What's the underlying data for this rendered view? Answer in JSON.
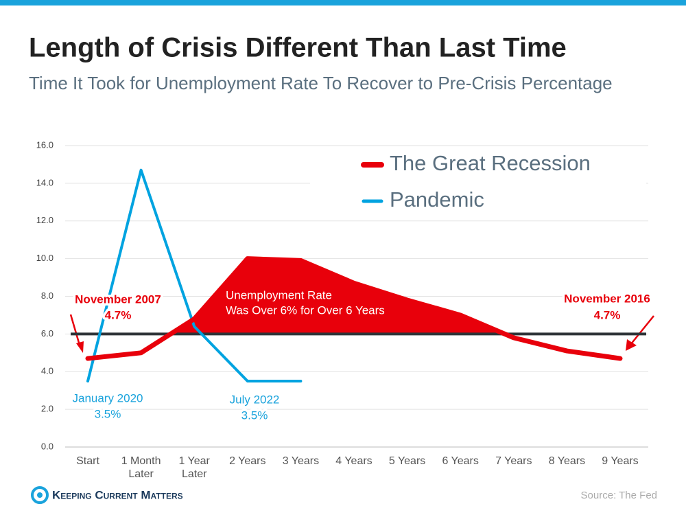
{
  "chart_data": {
    "type": "line",
    "title": "Length of Crisis Different Than Last Time",
    "subtitle": "Time It Took for Unemployment Rate To Recover to Pre-Crisis Percentage",
    "categories": [
      [
        "Start"
      ],
      [
        "1 Month",
        "Later"
      ],
      [
        "1 Year",
        "Later"
      ],
      [
        "2 Years"
      ],
      [
        "3 Years"
      ],
      [
        "4 Years"
      ],
      [
        "5 Years"
      ],
      [
        "6 Years"
      ],
      [
        "7 Years"
      ],
      [
        "8 Years"
      ],
      [
        "9 Years"
      ]
    ],
    "series": [
      {
        "name": "The Great Recession",
        "color": "#e8000b",
        "values": [
          4.7,
          5.0,
          6.8,
          10.0,
          9.9,
          8.7,
          7.8,
          7.0,
          5.8,
          5.1,
          4.7
        ]
      },
      {
        "name": "Pandemic",
        "color": "#00a3e0",
        "values": [
          3.5,
          14.7,
          6.4,
          3.5,
          3.5,
          null,
          null,
          null,
          null,
          null,
          null
        ]
      }
    ],
    "threshold": 6,
    "ylim": [
      0,
      16
    ],
    "yticks": [
      {
        "value": 0,
        "label": "0.0"
      },
      {
        "value": 2,
        "label": "2.0"
      },
      {
        "value": 4,
        "label": "4.0"
      },
      {
        "value": 6,
        "label": "6.0"
      },
      {
        "value": 8,
        "label": "8.0"
      },
      {
        "value": 10,
        "label": "10.0"
      },
      {
        "value": 12,
        "label": "12.0"
      },
      {
        "value": 14,
        "label": "14.0"
      },
      {
        "value": 16,
        "label": "16.0"
      }
    ],
    "grid": true,
    "legend": "upper right",
    "annotations": [
      "November 2007",
      "4.7%",
      "November 2016",
      "4.7%",
      "January 2020",
      "3.5%",
      "July 2022",
      "3.5%",
      "Unemployment Rate",
      "Was Over 6% for Over 6 Years"
    ],
    "brand": "Keeping Current Matters",
    "source": "Source: The Fed"
  }
}
